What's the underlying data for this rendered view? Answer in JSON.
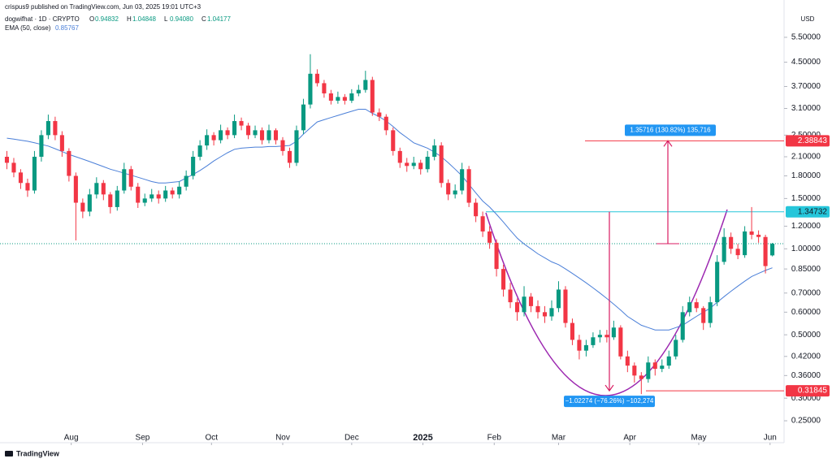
{
  "chart_data": {
    "type": "candlestick",
    "publisher": "crispus9 published on TradingView.com, Jun 03, 2025 19:01 UTC+3",
    "title": "dogwifhat · 1D · CRYPTO",
    "ohlc_keys": [
      "O",
      "H",
      "L",
      "C"
    ],
    "last_value_labels": [
      "0.94832",
      "1.04848",
      "0.94080",
      "1.04177"
    ],
    "currency": "USD",
    "brand": "TradingView",
    "up_color": "#089981",
    "down_color": "#f23645",
    "log_scale": true,
    "ylim": [
      0.2165,
      7.43
    ],
    "yticks": [
      {
        "value": 5.5,
        "label": "5.50000"
      },
      {
        "value": 4.5,
        "label": "4.50000"
      },
      {
        "value": 3.7,
        "label": "3.70000"
      },
      {
        "value": 3.1,
        "label": "3.10000"
      },
      {
        "value": 2.5,
        "label": "2.50000"
      },
      {
        "value": 2.1,
        "label": "2.10000"
      },
      {
        "value": 1.8,
        "label": "1.80000"
      },
      {
        "value": 1.5,
        "label": "1.50000"
      },
      {
        "value": 1.2,
        "label": "1.20000"
      },
      {
        "value": 1.0,
        "label": "1.00000"
      },
      {
        "value": 0.85,
        "label": "0.85000"
      },
      {
        "value": 0.7,
        "label": "0.70000"
      },
      {
        "value": 0.6,
        "label": "0.60000"
      },
      {
        "value": 0.5,
        "label": "0.50000"
      },
      {
        "value": 0.42,
        "label": "0.42000"
      },
      {
        "value": 0.36,
        "label": "0.36000"
      },
      {
        "value": 0.3,
        "label": "0.30000"
      },
      {
        "value": 0.25,
        "label": "0.25000"
      }
    ],
    "xlim": [
      -1,
      112.7
    ],
    "xticks": [
      {
        "value": 9.33,
        "label": "Aug"
      },
      {
        "value": 19.67,
        "label": "Sep"
      },
      {
        "value": 29.67,
        "label": "Oct"
      },
      {
        "value": 40,
        "label": "Nov"
      },
      {
        "value": 50,
        "label": "Dec"
      },
      {
        "value": 60.33,
        "label": "2025"
      },
      {
        "value": 70.67,
        "label": "Feb"
      },
      {
        "value": 80,
        "label": "Mar"
      },
      {
        "value": 90.33,
        "label": "Apr"
      },
      {
        "value": 100.33,
        "label": "May"
      },
      {
        "value": 110.67,
        "label": "Jun"
      }
    ],
    "candles": [
      [
        2.1,
        2.2,
        1.9,
        2.0
      ],
      [
        2.0,
        2.08,
        1.78,
        1.85
      ],
      [
        1.85,
        1.9,
        1.62,
        1.7
      ],
      [
        1.7,
        1.76,
        1.52,
        1.6
      ],
      [
        1.6,
        2.2,
        1.56,
        2.1
      ],
      [
        2.1,
        2.6,
        2.02,
        2.5
      ],
      [
        2.5,
        2.95,
        2.42,
        2.8
      ],
      [
        2.8,
        2.9,
        2.4,
        2.5
      ],
      [
        2.5,
        2.58,
        2.1,
        2.2
      ],
      [
        2.2,
        2.25,
        1.72,
        1.8
      ],
      [
        1.8,
        1.85,
        1.07,
        1.45
      ],
      [
        1.45,
        1.5,
        1.28,
        1.35
      ],
      [
        1.35,
        1.62,
        1.3,
        1.55
      ],
      [
        1.55,
        1.78,
        1.5,
        1.7
      ],
      [
        1.7,
        1.74,
        1.48,
        1.55
      ],
      [
        1.55,
        1.58,
        1.33,
        1.4
      ],
      [
        1.4,
        1.66,
        1.36,
        1.6
      ],
      [
        1.6,
        2.0,
        1.56,
        1.9
      ],
      [
        1.9,
        1.95,
        1.6,
        1.65
      ],
      [
        1.65,
        1.7,
        1.39,
        1.45
      ],
      [
        1.45,
        1.56,
        1.41,
        1.5
      ],
      [
        1.5,
        1.62,
        1.46,
        1.55
      ],
      [
        1.55,
        1.6,
        1.44,
        1.5
      ],
      [
        1.5,
        1.66,
        1.46,
        1.6
      ],
      [
        1.6,
        1.64,
        1.5,
        1.55
      ],
      [
        1.55,
        1.72,
        1.5,
        1.65
      ],
      [
        1.65,
        1.88,
        1.6,
        1.8
      ],
      [
        1.8,
        2.2,
        1.75,
        2.1
      ],
      [
        2.1,
        2.4,
        2.04,
        2.3
      ],
      [
        2.3,
        2.62,
        2.22,
        2.5
      ],
      [
        2.5,
        2.56,
        2.3,
        2.4
      ],
      [
        2.4,
        2.72,
        2.34,
        2.6
      ],
      [
        2.6,
        2.66,
        2.42,
        2.5
      ],
      [
        2.5,
        2.95,
        2.44,
        2.8
      ],
      [
        2.8,
        2.88,
        2.6,
        2.7
      ],
      [
        2.7,
        2.76,
        2.42,
        2.5
      ],
      [
        2.5,
        2.7,
        2.44,
        2.6
      ],
      [
        2.6,
        2.66,
        2.32,
        2.4
      ],
      [
        2.4,
        2.72,
        2.34,
        2.6
      ],
      [
        2.6,
        2.64,
        2.32,
        2.4
      ],
      [
        2.4,
        2.46,
        2.12,
        2.2
      ],
      [
        2.2,
        2.26,
        1.92,
        2.0
      ],
      [
        2.0,
        2.7,
        1.95,
        2.6
      ],
      [
        2.6,
        3.35,
        2.52,
        3.2
      ],
      [
        3.2,
        4.8,
        3.1,
        4.1
      ],
      [
        4.1,
        4.25,
        3.7,
        3.8
      ],
      [
        3.8,
        3.9,
        3.38,
        3.5
      ],
      [
        3.5,
        3.6,
        3.2,
        3.3
      ],
      [
        3.3,
        3.55,
        3.22,
        3.4
      ],
      [
        3.4,
        3.48,
        3.2,
        3.3
      ],
      [
        3.3,
        3.62,
        3.24,
        3.5
      ],
      [
        3.5,
        3.75,
        3.42,
        3.6
      ],
      [
        3.6,
        4.2,
        3.52,
        3.9
      ],
      [
        3.9,
        4.0,
        2.92,
        3.0
      ],
      [
        3.0,
        3.1,
        2.8,
        2.9
      ],
      [
        2.9,
        2.96,
        2.5,
        2.6
      ],
      [
        2.6,
        2.66,
        2.12,
        2.2
      ],
      [
        2.2,
        2.26,
        1.92,
        2.0
      ],
      [
        2.0,
        2.08,
        1.86,
        1.95
      ],
      [
        1.95,
        2.1,
        1.9,
        2.0
      ],
      [
        2.0,
        2.05,
        1.82,
        1.9
      ],
      [
        1.9,
        2.2,
        1.85,
        2.1
      ],
      [
        2.1,
        2.42,
        2.04,
        2.3
      ],
      [
        2.3,
        2.36,
        1.64,
        1.7
      ],
      [
        1.7,
        1.75,
        1.48,
        1.55
      ],
      [
        1.55,
        1.68,
        1.5,
        1.6
      ],
      [
        1.6,
        2.0,
        1.55,
        1.9
      ],
      [
        1.9,
        1.95,
        1.4,
        1.45
      ],
      [
        1.45,
        1.5,
        1.24,
        1.3
      ],
      [
        1.3,
        1.35,
        1.1,
        1.15
      ],
      [
        1.15,
        1.2,
        1.0,
        1.05
      ],
      [
        1.05,
        1.08,
        0.8,
        0.85
      ],
      [
        0.85,
        0.88,
        0.68,
        0.72
      ],
      [
        0.72,
        0.76,
        0.62,
        0.65
      ],
      [
        0.65,
        0.67,
        0.56,
        0.6
      ],
      [
        0.6,
        0.74,
        0.58,
        0.68
      ],
      [
        0.68,
        0.7,
        0.6,
        0.63
      ],
      [
        0.63,
        0.66,
        0.57,
        0.6
      ],
      [
        0.6,
        0.63,
        0.55,
        0.58
      ],
      [
        0.58,
        0.66,
        0.56,
        0.62
      ],
      [
        0.62,
        0.77,
        0.6,
        0.72
      ],
      [
        0.72,
        0.74,
        0.53,
        0.55
      ],
      [
        0.55,
        0.57,
        0.46,
        0.48
      ],
      [
        0.48,
        0.5,
        0.41,
        0.44
      ],
      [
        0.44,
        0.48,
        0.42,
        0.46
      ],
      [
        0.46,
        0.51,
        0.45,
        0.49
      ],
      [
        0.49,
        0.52,
        0.47,
        0.5
      ],
      [
        0.5,
        0.52,
        0.47,
        0.49
      ],
      [
        0.49,
        0.56,
        0.48,
        0.53
      ],
      [
        0.53,
        0.54,
        0.41,
        0.42
      ],
      [
        0.42,
        0.44,
        0.37,
        0.39
      ],
      [
        0.39,
        0.4,
        0.34,
        0.36
      ],
      [
        0.36,
        0.37,
        0.31,
        0.35
      ],
      [
        0.35,
        0.42,
        0.34,
        0.4
      ],
      [
        0.4,
        0.41,
        0.36,
        0.38
      ],
      [
        0.38,
        0.41,
        0.37,
        0.39
      ],
      [
        0.39,
        0.44,
        0.38,
        0.42
      ],
      [
        0.42,
        0.5,
        0.41,
        0.48
      ],
      [
        0.48,
        0.63,
        0.47,
        0.6
      ],
      [
        0.6,
        0.68,
        0.58,
        0.65
      ],
      [
        0.65,
        0.67,
        0.6,
        0.62
      ],
      [
        0.62,
        0.63,
        0.52,
        0.55
      ],
      [
        0.55,
        0.68,
        0.53,
        0.65
      ],
      [
        0.65,
        0.95,
        0.63,
        0.9
      ],
      [
        0.9,
        1.18,
        0.88,
        1.1
      ],
      [
        1.1,
        1.14,
        0.96,
        1.0
      ],
      [
        1.0,
        1.04,
        0.92,
        0.95
      ],
      [
        0.95,
        1.2,
        0.93,
        1.15
      ],
      [
        1.15,
        1.4,
        1.08,
        1.12
      ],
      [
        1.12,
        1.16,
        1.05,
        1.1
      ],
      [
        1.1,
        1.12,
        0.82,
        0.87
      ],
      [
        0.94832,
        1.04848,
        0.9408,
        1.04177
      ]
    ],
    "ema": {
      "name": "EMA (50, close)",
      "color": "#4a7fd8",
      "values": [
        2.44,
        2.42,
        2.4,
        2.38,
        2.35,
        2.32,
        2.29,
        2.24,
        2.19,
        2.14,
        2.1,
        2.06,
        2.02,
        1.98,
        1.94,
        1.9,
        1.87,
        1.84,
        1.81,
        1.78,
        1.75,
        1.72,
        1.7,
        1.7,
        1.71,
        1.72,
        1.77,
        1.82,
        1.88,
        1.95,
        2.03,
        2.1,
        2.17,
        2.23,
        2.25,
        2.26,
        2.27,
        2.27,
        2.28,
        2.28,
        2.29,
        2.3,
        2.38,
        2.52,
        2.65,
        2.78,
        2.83,
        2.88,
        2.93,
        2.98,
        3.03,
        3.08,
        3.08,
        2.98,
        2.9,
        2.8,
        2.68,
        2.55,
        2.45,
        2.35,
        2.3,
        2.25,
        2.18,
        2.1,
        2.0,
        1.9,
        1.8,
        1.68,
        1.57,
        1.47,
        1.4,
        1.32,
        1.24,
        1.16,
        1.09,
        1.04,
        1.0,
        0.96,
        0.93,
        0.9,
        0.88,
        0.85,
        0.82,
        0.79,
        0.76,
        0.73,
        0.7,
        0.67,
        0.64,
        0.61,
        0.58,
        0.56,
        0.54,
        0.53,
        0.52,
        0.52,
        0.52,
        0.53,
        0.54,
        0.56,
        0.58,
        0.6,
        0.62,
        0.65,
        0.68,
        0.71,
        0.74,
        0.77,
        0.8,
        0.82,
        0.84,
        0.85767
      ]
    },
    "levels": [
      {
        "value": 2.38843,
        "color": "#f23645"
      },
      {
        "value": 1.34732,
        "color": "#26c6da"
      },
      {
        "value": 0.31845,
        "color": "#f23645"
      }
    ],
    "measures": [
      {
        "label": "1.35716 (130.82%) 135,716",
        "color": "#2196f3"
      },
      {
        "label": "−1.02274 (−76.26%) −102,274",
        "color": "#2196f3"
      }
    ]
  }
}
